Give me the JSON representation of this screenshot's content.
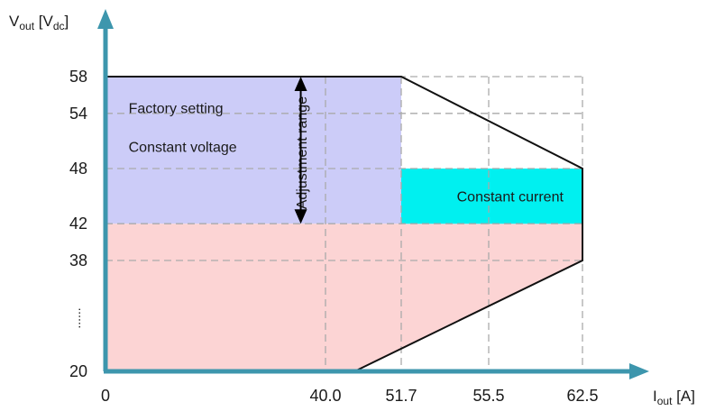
{
  "chart_data": {
    "type": "area",
    "title": "",
    "ylabel": {
      "main": "V",
      "sub1": "out",
      "bracket_open": " [V",
      "sub2": "dc",
      "bracket_close": "]"
    },
    "xlabel": {
      "main": "I",
      "sub1": "out",
      "unit": " [A]"
    },
    "x_ticks": [
      {
        "value": 0,
        "label": "0"
      },
      {
        "value": 40.0,
        "label": "40.0"
      },
      {
        "value": 51.7,
        "label": "51.7"
      },
      {
        "value": 55.5,
        "label": "55.5"
      },
      {
        "value": 62.5,
        "label": "62.5"
      }
    ],
    "y_ticks": [
      {
        "value": 20,
        "label": "20"
      },
      {
        "value": 38,
        "label": "38"
      },
      {
        "value": 42,
        "label": "42"
      },
      {
        "value": 48,
        "label": "48"
      },
      {
        "value": 54,
        "label": "54"
      },
      {
        "value": 58,
        "label": "58"
      }
    ],
    "y_break_label": "......",
    "grid": true,
    "regions": [
      {
        "name": "constant-voltage",
        "color": "#ccccf8",
        "x": [
          0,
          51.7
        ],
        "y": [
          42,
          58
        ]
      },
      {
        "name": "lower-operating",
        "color": "#fcd4d4",
        "points": [
          [
            0,
            20
          ],
          [
            44.5,
            20
          ],
          [
            62.5,
            38
          ],
          [
            62.5,
            42
          ],
          [
            0,
            42
          ]
        ]
      },
      {
        "name": "constant-current",
        "color": "#00f0f0",
        "x": [
          51.7,
          62.5
        ],
        "y": [
          42,
          48
        ]
      }
    ],
    "boundary": [
      [
        0,
        58
      ],
      [
        51.7,
        58
      ],
      [
        62.5,
        48
      ],
      [
        62.5,
        38
      ],
      [
        44.5,
        20
      ]
    ],
    "annotations": {
      "factory_setting": {
        "text": "Factory setting",
        "x": 4.2,
        "y": 54.6
      },
      "constant_voltage": {
        "text": "Constant voltage",
        "x": 4.2,
        "y": 50.4
      },
      "constant_current": {
        "text": "Constant current",
        "x": 57.1,
        "y": 45
      },
      "adjustment_range": {
        "text": "Adjustment range",
        "x": 38.2,
        "y": 50
      }
    },
    "adjustment_arrow": {
      "x": 35.5,
      "y": [
        42,
        58
      ]
    },
    "colors": {
      "axis": "#3d96ad",
      "grid": "#aaaaaa",
      "boundary": "#111111"
    }
  }
}
